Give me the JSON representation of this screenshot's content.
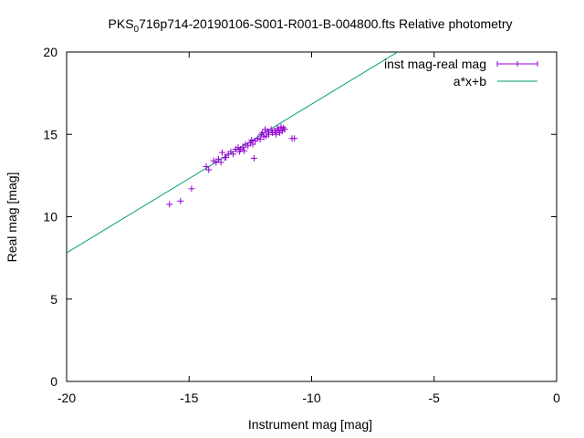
{
  "chart_data": {
    "type": "scatter",
    "title": {
      "prefix": "PKS",
      "subscript": "0",
      "suffix": "716p714-20190106-S001-R001-B-004800.fts Relative photometry"
    },
    "xlabel": "Instrument mag [mag]",
    "ylabel": "Real mag [mag]",
    "xlim": [
      -20,
      0
    ],
    "ylim": [
      0,
      20
    ],
    "x_ticks": [
      {
        "value": -20,
        "label": "-20"
      },
      {
        "value": -15,
        "label": "-15"
      },
      {
        "value": -10,
        "label": "-10"
      },
      {
        "value": -5,
        "label": "-5"
      },
      {
        "value": 0,
        "label": "0"
      }
    ],
    "y_ticks": [
      {
        "value": 0,
        "label": "0"
      },
      {
        "value": 5,
        "label": "5"
      },
      {
        "value": 10,
        "label": "10"
      },
      {
        "value": 15,
        "label": "15"
      },
      {
        "value": 20,
        "label": "20"
      }
    ],
    "grid": false,
    "legend_position": "top-right",
    "series": [
      {
        "name": "inst mag-real mag",
        "kind": "points-errorbars",
        "color": "#9400d3",
        "points": [
          [
            -15.8,
            10.75
          ],
          [
            -15.35,
            10.95
          ],
          [
            -14.9,
            11.7
          ],
          [
            -14.3,
            13.05
          ],
          [
            -14.2,
            12.85
          ],
          [
            -14.0,
            13.4
          ],
          [
            -13.9,
            13.3
          ],
          [
            -13.8,
            13.5
          ],
          [
            -13.7,
            13.3
          ],
          [
            -13.65,
            13.9
          ],
          [
            -13.5,
            13.6
          ],
          [
            -13.4,
            13.8
          ],
          [
            -13.3,
            13.95
          ],
          [
            -13.2,
            13.8
          ],
          [
            -13.1,
            14.1
          ],
          [
            -13.0,
            14.2
          ],
          [
            -12.9,
            14.1
          ],
          [
            -12.8,
            14.2
          ],
          [
            -12.7,
            14.4
          ],
          [
            -12.6,
            14.3
          ],
          [
            -12.5,
            14.5
          ],
          [
            -12.45,
            14.65
          ],
          [
            -12.4,
            14.4
          ],
          [
            -12.35,
            13.55
          ],
          [
            -12.3,
            14.6
          ],
          [
            -12.2,
            14.75
          ],
          [
            -12.1,
            14.7
          ],
          [
            -12.05,
            15.0
          ],
          [
            -12.0,
            15.1
          ],
          [
            -11.9,
            15.3
          ],
          [
            -11.85,
            14.9
          ],
          [
            -11.8,
            15.2
          ],
          [
            -11.75,
            15.0
          ],
          [
            -11.65,
            15.3
          ],
          [
            -11.6,
            15.1
          ],
          [
            -11.5,
            15.2
          ],
          [
            -11.45,
            15.0
          ],
          [
            -11.4,
            15.35
          ],
          [
            -11.3,
            15.1
          ],
          [
            -11.25,
            15.45
          ],
          [
            -11.2,
            15.2
          ],
          [
            -11.15,
            15.4
          ],
          [
            -11.1,
            15.3
          ],
          [
            -10.8,
            14.75
          ],
          [
            -10.7,
            14.75
          ],
          [
            -12.95,
            13.95
          ],
          [
            -12.75,
            14.0
          ],
          [
            -13.55,
            13.6
          ],
          [
            -11.95,
            14.85
          ],
          [
            -11.35,
            15.25
          ]
        ]
      },
      {
        "name": "a*x+b",
        "kind": "line",
        "color": "#009e73",
        "slope": 0.9027,
        "intercept": 25.86
      }
    ]
  }
}
